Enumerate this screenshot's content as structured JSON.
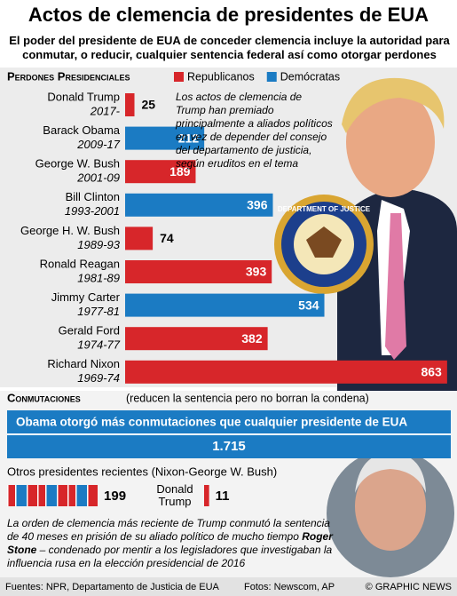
{
  "title": "Actos de clemencia de presidentes de EUA",
  "subtitle": "El poder del presidente de EUA de conceder clemencia incluye la autoridad para conmutar, o reducir, cualquier sentencia federal así como otorgar perdones",
  "seal": "DEPARTMENT OF JUSTICE",
  "footer": {
    "sources": "Fuentes: NPR, Departamento de Justicia de EUA",
    "photos": "Fotos: Newscom, AP",
    "credit": "© GRAPHIC NEWS"
  },
  "chart_data": [
    {
      "type": "hbar",
      "title": "Perdones Presidenciales",
      "categories": [
        "Donald Trump",
        "Barack Obama",
        "George W. Bush",
        "Bill Clinton",
        "George H. W. Bush",
        "Ronald Reagan",
        "Jimmy Carter",
        "Gerald Ford",
        "Richard Nixon"
      ],
      "category_years": [
        "2017-",
        "2009-17",
        "2001-09",
        "1993-2001",
        "1989-93",
        "1981-89",
        "1977-81",
        "1974-77",
        "1969-74"
      ],
      "series": [
        {
          "name": "Republicanos",
          "color": "#d7262a",
          "values": [
            25,
            null,
            189,
            null,
            74,
            393,
            null,
            382,
            863
          ]
        },
        {
          "name": "Demócratas",
          "color": "#1b7bc3",
          "values": [
            null,
            212,
            null,
            396,
            null,
            null,
            534,
            null,
            null
          ]
        }
      ],
      "xlim": [
        0,
        880
      ],
      "annotation": "Los actos de clemencia de Trump han premiado principalmente a aliados políticos en vez de depender del consejo del departamento de justicia, según eruditos en el tema"
    },
    {
      "type": "hbar",
      "title": "Conmutaciones",
      "subtitle": "(reducen la sentencia pero no borran la condena)",
      "annotation": "Obama otorgó más conmutaciones que cualquier presidente de EUA",
      "values": [
        1715
      ],
      "value_labels": [
        "1.715"
      ],
      "color": "#1b7bc3",
      "xlim": [
        0,
        1715
      ]
    },
    {
      "type": "hbar",
      "title": "Otros presidentes recientes (Nixon-George W. Bush)",
      "categories": [
        null,
        "Donald Trump"
      ],
      "values": [
        199,
        11
      ],
      "color": "#d7262a",
      "xlim": [
        0,
        390
      ],
      "annotation": [
        "La orden de clemencia más reciente de Trump conmutó la sentencia de 40 meses en prisión de su aliado político de mucho tiempo ",
        "Roger Stone",
        " – condenado por mentir a los legisladores que investigaban la influencia rusa en la elección presidencial de 2016"
      ]
    }
  ]
}
